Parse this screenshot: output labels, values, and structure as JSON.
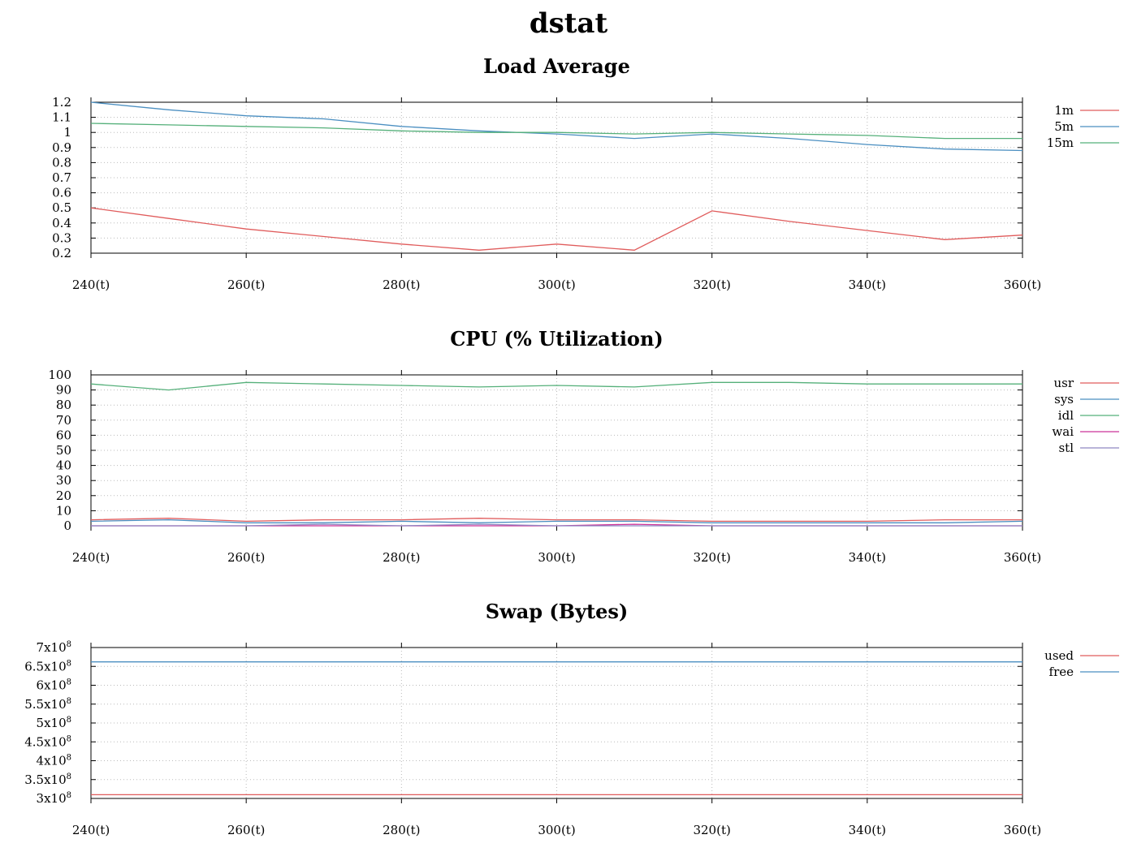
{
  "title": "dstat",
  "colors": {
    "red": "#e05c5c",
    "blue": "#4b8fc1",
    "green": "#55b07a",
    "magenta": "#cc3399",
    "purple": "#8f86c2"
  },
  "chart_data": [
    {
      "type": "line",
      "title": "Load Average",
      "x": [
        240,
        250,
        260,
        270,
        280,
        290,
        300,
        310,
        320,
        330,
        340,
        350,
        360
      ],
      "x_ticks": [
        240,
        260,
        280,
        300,
        320,
        340,
        360
      ],
      "x_tick_labels": [
        "240(t)",
        "260(t)",
        "280(t)",
        "300(t)",
        "320(t)",
        "340(t)",
        "360(t)"
      ],
      "xlim": [
        240,
        360
      ],
      "ylim": [
        0.2,
        1.2
      ],
      "y_ticks": [
        0.2,
        0.3,
        0.4,
        0.5,
        0.6,
        0.7,
        0.8,
        0.9,
        1,
        1.1,
        1.2
      ],
      "y_tick_labels": [
        "0.2",
        "0.3",
        "0.4",
        "0.5",
        "0.6",
        "0.7",
        "0.8",
        "0.9",
        "1",
        "1.1",
        "1.2"
      ],
      "grid": true,
      "legend_position": "right",
      "series": [
        {
          "name": "1m",
          "color": "#e05c5c",
          "values": [
            0.5,
            0.43,
            0.36,
            0.31,
            0.26,
            0.22,
            0.26,
            0.22,
            0.48,
            0.41,
            0.35,
            0.29,
            0.32
          ]
        },
        {
          "name": "5m",
          "color": "#4b8fc1",
          "values": [
            1.2,
            1.15,
            1.11,
            1.09,
            1.04,
            1.01,
            0.99,
            0.96,
            0.99,
            0.96,
            0.92,
            0.89,
            0.88
          ]
        },
        {
          "name": "15m",
          "color": "#55b07a",
          "values": [
            1.06,
            1.05,
            1.04,
            1.03,
            1.01,
            1.0,
            1.0,
            0.99,
            1.0,
            0.99,
            0.98,
            0.96,
            0.96
          ]
        }
      ]
    },
    {
      "type": "line",
      "title": "CPU (% Utilization)",
      "x": [
        240,
        250,
        260,
        270,
        280,
        290,
        300,
        310,
        320,
        330,
        340,
        350,
        360
      ],
      "x_ticks": [
        240,
        260,
        280,
        300,
        320,
        340,
        360
      ],
      "x_tick_labels": [
        "240(t)",
        "260(t)",
        "280(t)",
        "300(t)",
        "320(t)",
        "340(t)",
        "360(t)"
      ],
      "xlim": [
        240,
        360
      ],
      "ylim": [
        0,
        100
      ],
      "y_ticks": [
        0,
        10,
        20,
        30,
        40,
        50,
        60,
        70,
        80,
        90,
        100
      ],
      "y_tick_labels": [
        "0",
        "10",
        "20",
        "30",
        "40",
        "50",
        "60",
        "70",
        "80",
        "90",
        "100"
      ],
      "grid": true,
      "legend_position": "right",
      "series": [
        {
          "name": "usr",
          "color": "#e05c5c",
          "values": [
            4,
            5,
            3,
            4,
            4,
            5,
            4,
            4,
            3,
            3,
            3,
            4,
            4
          ]
        },
        {
          "name": "sys",
          "color": "#4b8fc1",
          "values": [
            3,
            4,
            2,
            2,
            3,
            2,
            3,
            3,
            2,
            2,
            2,
            2,
            3
          ]
        },
        {
          "name": "idl",
          "color": "#55b07a",
          "values": [
            94,
            90,
            95,
            94,
            93,
            92,
            93,
            92,
            95,
            95,
            94,
            94,
            94
          ]
        },
        {
          "name": "wai",
          "color": "#cc3399",
          "values": [
            0,
            0,
            0,
            0,
            0,
            0,
            0,
            1,
            0,
            0,
            0,
            0,
            0
          ]
        },
        {
          "name": "stl",
          "color": "#8f86c2",
          "values": [
            0,
            0,
            0,
            1,
            0,
            1,
            0,
            0,
            0,
            0,
            0,
            0,
            0
          ]
        }
      ]
    },
    {
      "type": "line",
      "title": "Swap (Bytes)",
      "x": [
        240,
        250,
        260,
        270,
        280,
        290,
        300,
        310,
        320,
        330,
        340,
        350,
        360
      ],
      "x_ticks": [
        240,
        260,
        280,
        300,
        320,
        340,
        360
      ],
      "x_tick_labels": [
        "240(t)",
        "260(t)",
        "280(t)",
        "300(t)",
        "320(t)",
        "340(t)",
        "360(t)"
      ],
      "xlim": [
        240,
        360
      ],
      "ylim": [
        300000000,
        700000000
      ],
      "y_ticks": [
        300000000,
        350000000,
        400000000,
        450000000,
        500000000,
        550000000,
        600000000,
        650000000,
        700000000
      ],
      "y_tick_labels": [
        {
          "mantissa": "3x10",
          "exponent": "8"
        },
        {
          "mantissa": "3.5x10",
          "exponent": "8"
        },
        {
          "mantissa": "4x10",
          "exponent": "8"
        },
        {
          "mantissa": "4.5x10",
          "exponent": "8"
        },
        {
          "mantissa": "5x10",
          "exponent": "8"
        },
        {
          "mantissa": "5.5x10",
          "exponent": "8"
        },
        {
          "mantissa": "6x10",
          "exponent": "8"
        },
        {
          "mantissa": "6.5x10",
          "exponent": "8"
        },
        {
          "mantissa": "7x10",
          "exponent": "8"
        }
      ],
      "grid": true,
      "legend_position": "right",
      "series": [
        {
          "name": "used",
          "color": "#e05c5c",
          "values": [
            310000000,
            310000000,
            310000000,
            310000000,
            310000000,
            310000000,
            310000000,
            310000000,
            310000000,
            310000000,
            310000000,
            310000000,
            310000000
          ]
        },
        {
          "name": "free",
          "color": "#4b8fc1",
          "values": [
            662000000,
            662000000,
            662000000,
            662000000,
            662000000,
            662000000,
            662000000,
            662000000,
            662000000,
            662000000,
            662000000,
            662000000,
            662000000
          ]
        }
      ]
    }
  ]
}
